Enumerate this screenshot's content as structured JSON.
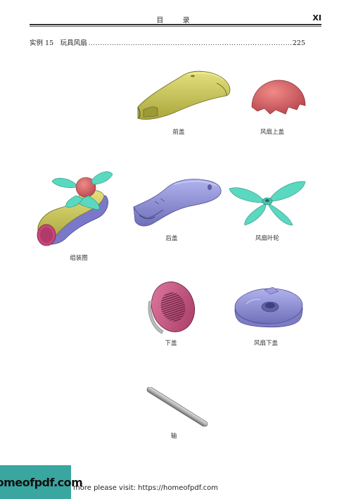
{
  "header": {
    "title": "目  录",
    "page_number": "XI"
  },
  "toc": {
    "label": "实例 15　玩具风扇",
    "page": "225"
  },
  "captions": {
    "front_cover": "前盖",
    "fan_top_cover": "风扇上盖",
    "assembly": "组装图",
    "back_cover": "后盖",
    "fan_blade": "风扇叶轮",
    "bottom_cover": "下盖",
    "fan_bottom_cover": "风扇下盖",
    "shaft": "轴"
  },
  "banner": {
    "text": "homeofpdf.com"
  },
  "footer": {
    "link_text": "more please visit: https://homeofpdf.com"
  },
  "colors": {
    "yellow": "#c8c45a",
    "red": "#d06060",
    "cyan": "#5ad8c0",
    "purple": "#8d8ed6",
    "magenta": "#c04878",
    "teal": "#3aa6a0"
  }
}
